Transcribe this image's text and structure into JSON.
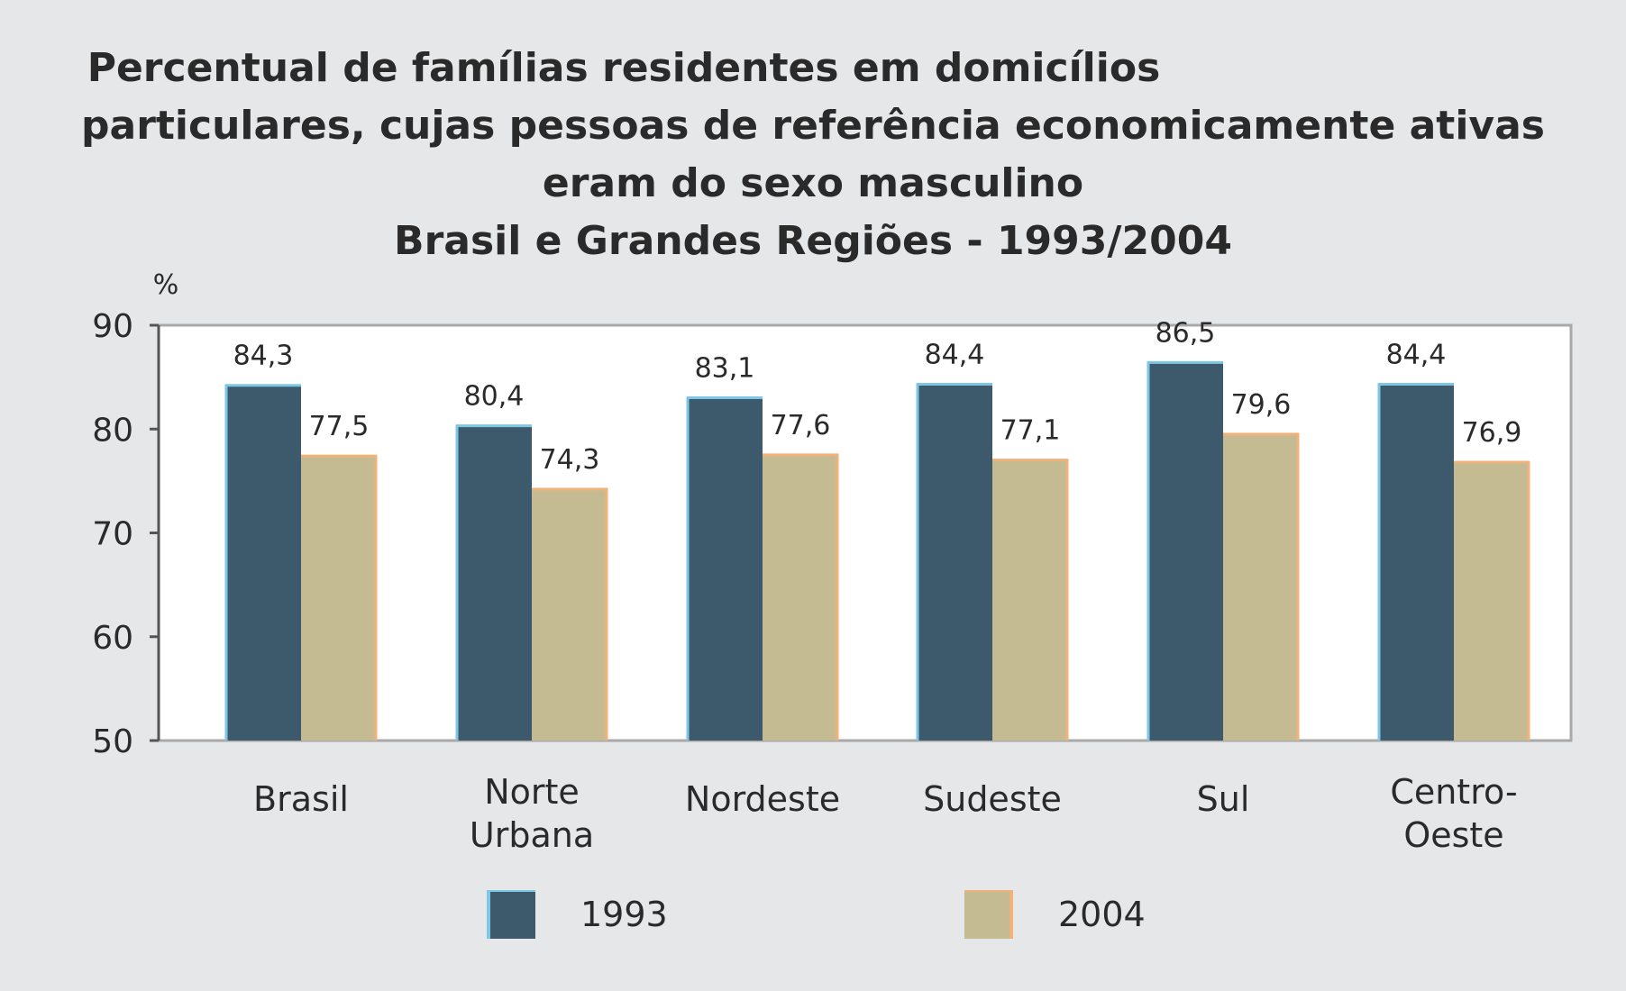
{
  "chart_data": {
    "type": "bar",
    "title_lines": [
      "Percentual de famílias residentes em domicílios",
      "particulares, cujas pessoas de referência economicamente ativas",
      "eram do sexo masculino",
      "Brasil e Grandes Regiões - 1993/2004"
    ],
    "ylabel": "%",
    "ylim": [
      50,
      90
    ],
    "yticks": [
      50,
      60,
      70,
      80,
      90
    ],
    "categories": [
      [
        "Brasil"
      ],
      [
        "Norte",
        "Urbana"
      ],
      [
        "Nordeste"
      ],
      [
        "Sudeste"
      ],
      [
        "Sul"
      ],
      [
        "Centro-",
        "Oeste"
      ]
    ],
    "series": [
      {
        "name": "1993",
        "color": "#3d5a6c",
        "edge": "#7ec6e6",
        "values": [
          84.3,
          80.4,
          83.1,
          84.4,
          86.5,
          84.4
        ],
        "labels": [
          "84,3",
          "80,4",
          "83,1",
          "84,4",
          "86,5",
          "84,4"
        ]
      },
      {
        "name": "2004",
        "color": "#c4bb92",
        "edge": "#f0b27a",
        "values": [
          77.5,
          74.3,
          77.6,
          77.1,
          79.6,
          76.9
        ],
        "labels": [
          "77,5",
          "74,3",
          "77,6",
          "77,1",
          "79,6",
          "76,9"
        ]
      }
    ],
    "grid": false,
    "legend_position": "bottom"
  }
}
